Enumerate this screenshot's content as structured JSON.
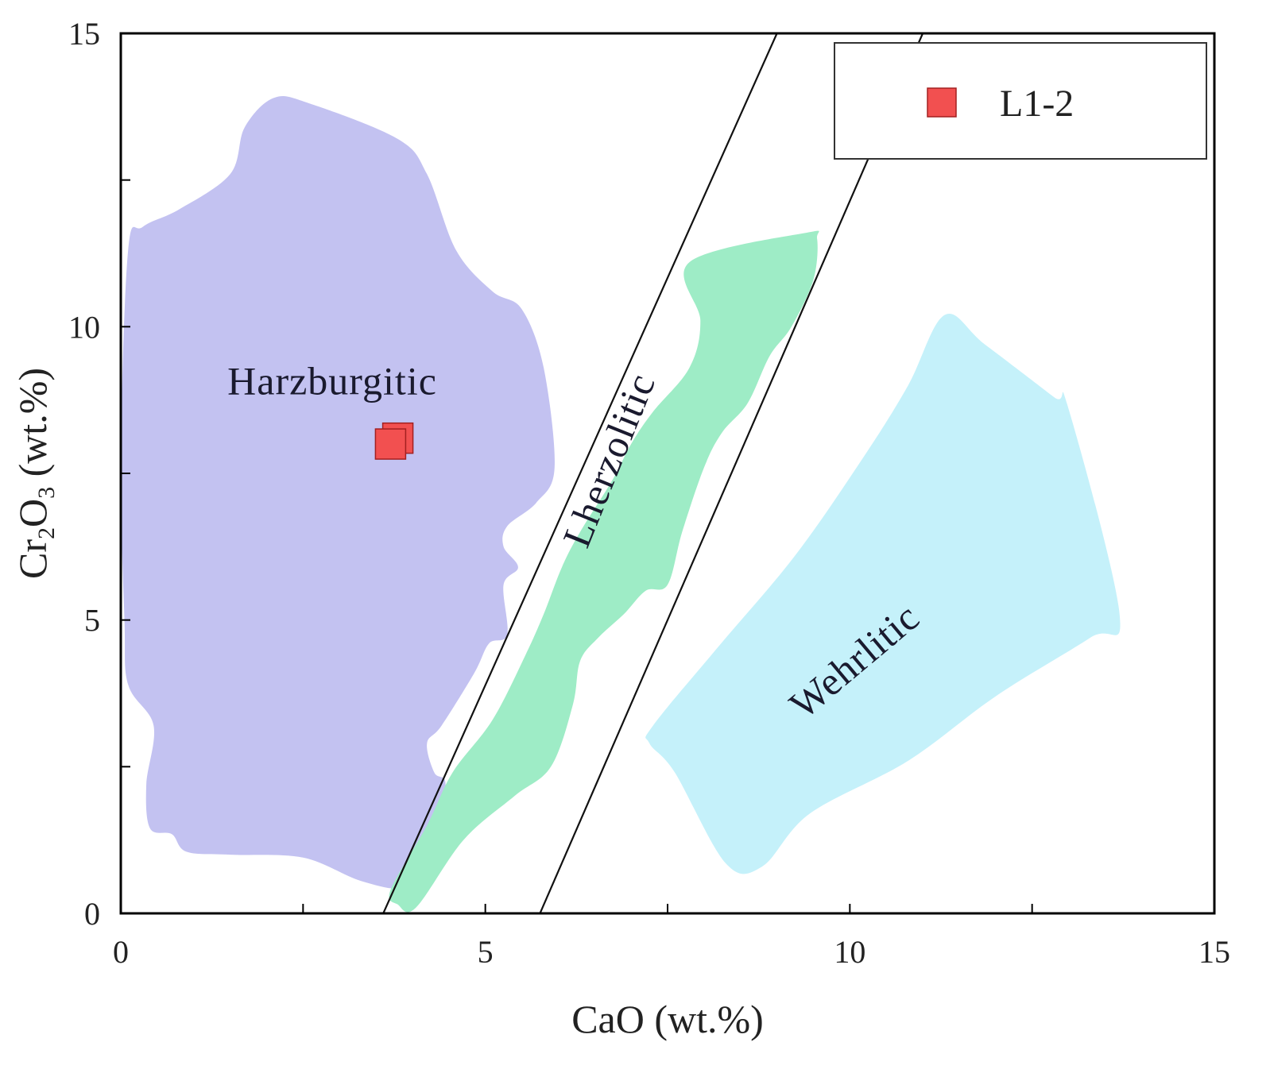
{
  "chart_data": {
    "type": "scatter",
    "xlabel": "CaO (wt.%)",
    "ylabel": {
      "prefix": "Cr",
      "sub1": "2",
      "mid": "O",
      "sub2": "3",
      "suffix": " (wt.%)"
    },
    "xlim": [
      0,
      15
    ],
    "ylim": [
      0,
      15
    ],
    "x_ticks": [
      0,
      5,
      10,
      15
    ],
    "y_ticks": [
      0,
      5,
      10,
      15
    ],
    "x_tick_labels": [
      "0",
      "5",
      "10",
      "15"
    ],
    "y_tick_labels": [
      "0",
      "5",
      "10",
      "15"
    ],
    "minor_tick_step": 2.5,
    "grid": false,
    "legend_position": "top-right",
    "fields": [
      {
        "name": "Harzburgitic",
        "label_at": [
          2.9,
          9.0
        ],
        "label_rotation": 0,
        "color": "#c3c2f1",
        "polygon": [
          [
            2.1,
            13.9
          ],
          [
            2.6,
            13.8
          ],
          [
            3.8,
            13.2
          ],
          [
            4.2,
            12.6
          ],
          [
            4.6,
            11.3
          ],
          [
            5.1,
            10.6
          ],
          [
            5.5,
            10.3
          ],
          [
            5.8,
            9.3
          ],
          [
            5.95,
            7.6
          ],
          [
            5.7,
            7.0
          ],
          [
            5.3,
            6.6
          ],
          [
            5.25,
            6.25
          ],
          [
            5.45,
            5.9
          ],
          [
            5.25,
            5.6
          ],
          [
            5.3,
            4.75
          ],
          [
            5.05,
            4.6
          ],
          [
            4.85,
            4.1
          ],
          [
            4.4,
            3.2
          ],
          [
            4.2,
            2.9
          ],
          [
            4.3,
            2.4
          ],
          [
            4.45,
            2.25
          ],
          [
            4.4,
            1.7
          ],
          [
            4.2,
            1.0
          ],
          [
            3.9,
            0.45
          ],
          [
            3.3,
            0.55
          ],
          [
            2.5,
            0.95
          ],
          [
            1.5,
            1.0
          ],
          [
            0.9,
            1.05
          ],
          [
            0.7,
            1.35
          ],
          [
            0.4,
            1.45
          ],
          [
            0.35,
            2.2
          ],
          [
            0.45,
            3.2
          ],
          [
            0.1,
            3.9
          ],
          [
            0.05,
            5.0
          ],
          [
            0.0,
            7.8
          ],
          [
            0.1,
            11.3
          ],
          [
            0.3,
            11.7
          ],
          [
            0.8,
            12.0
          ],
          [
            1.5,
            12.6
          ],
          [
            1.7,
            13.4
          ]
        ]
      },
      {
        "name": "Lherzolitic",
        "label_at": [
          6.75,
          7.7
        ],
        "label_rotation": -68,
        "color": "#9eecc6",
        "polygon": [
          [
            7.8,
            11.1
          ],
          [
            9.4,
            11.6
          ],
          [
            9.55,
            11.5
          ],
          [
            9.5,
            10.8
          ],
          [
            9.2,
            10.0
          ],
          [
            8.9,
            9.5
          ],
          [
            8.6,
            8.7
          ],
          [
            8.25,
            8.2
          ],
          [
            8.0,
            7.6
          ],
          [
            7.7,
            6.5
          ],
          [
            7.5,
            5.6
          ],
          [
            7.2,
            5.5
          ],
          [
            6.9,
            5.1
          ],
          [
            6.55,
            4.7
          ],
          [
            6.3,
            4.3
          ],
          [
            6.2,
            3.55
          ],
          [
            5.9,
            2.5
          ],
          [
            5.4,
            2.0
          ],
          [
            4.7,
            1.25
          ],
          [
            4.05,
            0.1
          ],
          [
            3.8,
            0.15
          ],
          [
            3.7,
            0.4
          ],
          [
            4.2,
            1.5
          ],
          [
            4.55,
            2.4
          ],
          [
            5.1,
            3.3
          ],
          [
            5.55,
            4.4
          ],
          [
            5.8,
            5.1
          ],
          [
            6.05,
            5.9
          ],
          [
            6.3,
            6.5
          ],
          [
            6.75,
            7.4
          ],
          [
            7.0,
            8.0
          ],
          [
            7.3,
            8.55
          ],
          [
            7.8,
            9.3
          ],
          [
            7.95,
            10.1
          ]
        ]
      },
      {
        "name": "Wehrlitic",
        "label_at": [
          10.1,
          4.25
        ],
        "label_rotation": -40,
        "color": "#c5f1fa",
        "polygon": [
          [
            11.3,
            10.2
          ],
          [
            11.85,
            9.7
          ],
          [
            12.8,
            8.8
          ],
          [
            13.0,
            8.6
          ],
          [
            13.7,
            5.1
          ],
          [
            13.3,
            4.7
          ],
          [
            12.0,
            3.7
          ],
          [
            10.8,
            2.6
          ],
          [
            9.45,
            1.7
          ],
          [
            8.8,
            0.8
          ],
          [
            8.3,
            0.85
          ],
          [
            7.6,
            2.4
          ],
          [
            7.25,
            2.9
          ],
          [
            7.3,
            3.2
          ],
          [
            8.2,
            4.55
          ],
          [
            9.25,
            6.1
          ],
          [
            10.2,
            7.8
          ],
          [
            10.8,
            9.0
          ]
        ]
      }
    ],
    "boundary_lines": [
      {
        "from": [
          3.6,
          0
        ],
        "to": [
          9.0,
          15
        ]
      },
      {
        "from": [
          5.75,
          0
        ],
        "to": [
          11.0,
          15
        ]
      }
    ],
    "series": [
      {
        "name": "L1-2",
        "marker": "square",
        "color": "#f25050",
        "edge_color": "#a32020",
        "points": [
          [
            3.8,
            8.1
          ],
          [
            3.7,
            8.0
          ]
        ]
      }
    ]
  }
}
